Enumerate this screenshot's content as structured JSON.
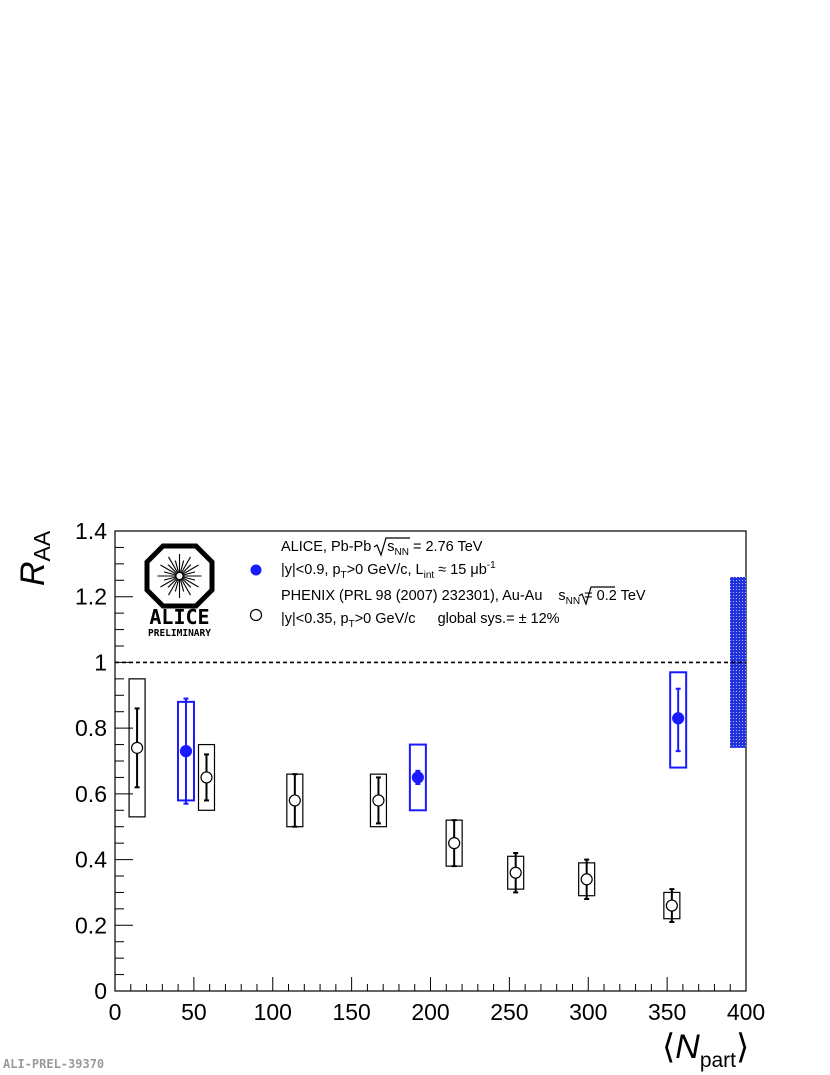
{
  "chart_data": {
    "type": "scatter",
    "xlim": [
      0,
      400
    ],
    "ylim": [
      0,
      1.4
    ],
    "xticks": [
      0,
      50,
      100,
      150,
      200,
      250,
      300,
      350,
      400
    ],
    "yticks": [
      0,
      0.2,
      0.4,
      0.6,
      0.8,
      1.0,
      1.2,
      1.4
    ],
    "xtick_labels": [
      "0",
      "50",
      "100",
      "150",
      "200",
      "250",
      "300",
      "350",
      "400"
    ],
    "ytick_labels": [
      "0",
      "0.2",
      "0.4",
      "0.6",
      "0.8",
      "1",
      "1.2",
      "1.4"
    ],
    "ylabel_main": "R",
    "ylabel_sub": "AA",
    "xlabel_left": "⟨",
    "xlabel_main": "N",
    "xlabel_sub": "part",
    "xlabel_right": "⟩",
    "reference_line": 1.0,
    "global_band": {
      "ymin": 0.74,
      "ymax": 1.26,
      "color": "#2233dd"
    },
    "grid": false,
    "legend_position": "top",
    "series": [
      {
        "name": "ALICE",
        "marker": "filled-circle",
        "color": "#1a1aff",
        "points": [
          {
            "x": 45,
            "y": 0.73,
            "stat_lo": 0.57,
            "stat_hi": 0.89,
            "sys_lo": 0.58,
            "sys_hi": 0.88
          },
          {
            "x": 192,
            "y": 0.65,
            "stat_lo": 0.63,
            "stat_hi": 0.67,
            "sys_lo": 0.55,
            "sys_hi": 0.75
          },
          {
            "x": 357,
            "y": 0.83,
            "stat_lo": 0.73,
            "stat_hi": 0.92,
            "sys_lo": 0.68,
            "sys_hi": 0.97
          }
        ]
      },
      {
        "name": "PHENIX",
        "marker": "open-circle",
        "color": "#000000",
        "points": [
          {
            "x": 14,
            "y": 0.74,
            "stat_lo": 0.62,
            "stat_hi": 0.86,
            "sys_lo": 0.53,
            "sys_hi": 0.95
          },
          {
            "x": 58,
            "y": 0.65,
            "stat_lo": 0.58,
            "stat_hi": 0.72,
            "sys_lo": 0.55,
            "sys_hi": 0.75
          },
          {
            "x": 114,
            "y": 0.58,
            "stat_lo": 0.5,
            "stat_hi": 0.66,
            "sys_lo": 0.5,
            "sys_hi": 0.66
          },
          {
            "x": 167,
            "y": 0.58,
            "stat_lo": 0.51,
            "stat_hi": 0.65,
            "sys_lo": 0.5,
            "sys_hi": 0.66
          },
          {
            "x": 215,
            "y": 0.45,
            "stat_lo": 0.38,
            "stat_hi": 0.52,
            "sys_lo": 0.38,
            "sys_hi": 0.52
          },
          {
            "x": 254,
            "y": 0.36,
            "stat_lo": 0.3,
            "stat_hi": 0.42,
            "sys_lo": 0.31,
            "sys_hi": 0.41
          },
          {
            "x": 299,
            "y": 0.34,
            "stat_lo": 0.28,
            "stat_hi": 0.4,
            "sys_lo": 0.29,
            "sys_hi": 0.39
          },
          {
            "x": 353,
            "y": 0.26,
            "stat_lo": 0.21,
            "stat_hi": 0.31,
            "sys_lo": 0.22,
            "sys_hi": 0.3
          }
        ]
      }
    ],
    "legend": {
      "alice_header_a": "ALICE, Pb-Pb",
      "alice_header_sqrt_s": "s",
      "alice_header_sqrt_sub": "NN",
      "alice_header_b": " = 2.76 TeV",
      "alice_entry_a": "|y|<0.9, p",
      "alice_entry_sub_t": "T",
      "alice_entry_b": ">0 GeV/c, L",
      "alice_entry_sub_int": "int",
      "alice_entry_c": " ≈ 15 μb",
      "alice_entry_sup": "-1",
      "phenix_header_a": "PHENIX (PRL 98 (2007) 232301), Au-Au",
      "phenix_header_sqrt_s": "s",
      "phenix_header_sqrt_sub": "NN",
      "phenix_header_b": " = 0.2 TeV",
      "phenix_entry_a": "|y|<0.35, p",
      "phenix_entry_sub_t": "T",
      "phenix_entry_b": ">0 GeV/c",
      "phenix_entry_c": "global sys.= ± 12%"
    }
  },
  "logo": {
    "name": "ALICE",
    "subtitle": "PRELIMINARY"
  },
  "footer_id": "ALI-PREL-39370"
}
